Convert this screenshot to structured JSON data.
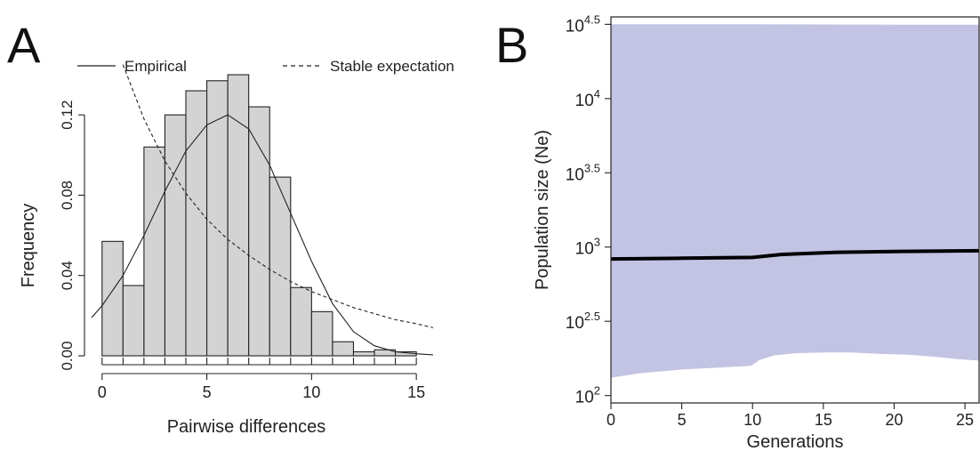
{
  "chart_data": [
    {
      "panel": "A",
      "type": "bar",
      "xlabel": "Pairwise differences",
      "ylabel": "Frequency",
      "xlim": [
        -0.5,
        15.8
      ],
      "ylim": [
        0,
        0.14
      ],
      "xticks": [
        "0",
        "5",
        "10",
        "15"
      ],
      "yticks": [
        "0.00",
        "0.04",
        "0.08",
        "0.12"
      ],
      "legend": [
        {
          "label": "Empirical",
          "style": "solid"
        },
        {
          "label": "Stable expectation",
          "style": "dashed"
        }
      ],
      "legend_position": "top",
      "bar_color": "#d3d3d3",
      "bins": [
        {
          "x0": 0,
          "x1": 1,
          "value": 0.057
        },
        {
          "x0": 1,
          "x1": 2,
          "value": 0.035
        },
        {
          "x0": 2,
          "x1": 3,
          "value": 0.104
        },
        {
          "x0": 3,
          "x1": 4,
          "value": 0.12
        },
        {
          "x0": 4,
          "x1": 5,
          "value": 0.132
        },
        {
          "x0": 5,
          "x1": 6,
          "value": 0.137
        },
        {
          "x0": 6,
          "x1": 7,
          "value": 0.14
        },
        {
          "x0": 7,
          "x1": 8,
          "value": 0.124
        },
        {
          "x0": 8,
          "x1": 9,
          "value": 0.089
        },
        {
          "x0": 9,
          "x1": 10,
          "value": 0.034
        },
        {
          "x0": 10,
          "x1": 11,
          "value": 0.022
        },
        {
          "x0": 11,
          "x1": 12,
          "value": 0.007
        },
        {
          "x0": 12,
          "x1": 13,
          "value": 0.002
        },
        {
          "x0": 13,
          "x1": 14,
          "value": 0.003
        },
        {
          "x0": 14,
          "x1": 15,
          "value": 0.002
        }
      ],
      "rug_x": [
        0,
        1,
        2,
        3,
        4,
        5,
        6,
        7,
        8,
        9,
        10,
        11,
        12,
        13,
        14,
        15
      ],
      "series": [
        {
          "name": "Empirical",
          "style": "solid",
          "x": [
            -0.5,
            0,
            1,
            2,
            3,
            4,
            5,
            6,
            7,
            8,
            9,
            10,
            11,
            12,
            13,
            14,
            15,
            15.8
          ],
          "y": [
            0.019,
            0.025,
            0.04,
            0.06,
            0.082,
            0.102,
            0.115,
            0.12,
            0.113,
            0.095,
            0.071,
            0.047,
            0.026,
            0.012,
            0.005,
            0.002,
            0.001,
            0.0005
          ]
        },
        {
          "name": "Stable expectation",
          "style": "dashed",
          "x": [
            1,
            2,
            3,
            4,
            5,
            6,
            7,
            8,
            9,
            10,
            11,
            12,
            13,
            14,
            15,
            15.8
          ],
          "y": [
            0.145,
            0.118,
            0.097,
            0.081,
            0.068,
            0.058,
            0.05,
            0.043,
            0.037,
            0.032,
            0.028,
            0.024,
            0.021,
            0.018,
            0.016,
            0.014
          ]
        }
      ]
    },
    {
      "panel": "B",
      "type": "area",
      "xlabel": "Generations",
      "ylabel": "Population size (Ne)",
      "xlim": [
        0,
        26
      ],
      "ylim_log10": [
        1.95,
        4.55
      ],
      "log_scale_y": true,
      "xticks": [
        "0",
        "5",
        "10",
        "15",
        "20",
        "25"
      ],
      "ytick_base": "10",
      "ytick_exponents": [
        "2",
        "2.5",
        "3",
        "3.5",
        "4",
        "4.5"
      ],
      "band_color": "#c3c3e3",
      "line_color": "#000000",
      "series": [
        {
          "role": "median",
          "x": [
            0,
            5,
            10,
            12,
            16,
            20,
            26
          ],
          "log10_y": [
            2.92,
            2.925,
            2.93,
            2.95,
            2.965,
            2.97,
            2.975
          ]
        },
        {
          "role": "upper",
          "x": [
            0,
            10,
            20,
            26
          ],
          "log10_y": [
            4.5,
            4.5,
            4.498,
            4.497
          ]
        },
        {
          "role": "lower",
          "x": [
            0,
            2,
            5,
            8,
            9.9,
            10.5,
            11.5,
            13,
            15,
            17,
            19,
            21,
            23,
            24.5,
            26
          ],
          "log10_y": [
            2.12,
            2.15,
            2.175,
            2.19,
            2.2,
            2.24,
            2.27,
            2.285,
            2.29,
            2.29,
            2.28,
            2.275,
            2.26,
            2.245,
            2.235
          ]
        }
      ]
    }
  ]
}
